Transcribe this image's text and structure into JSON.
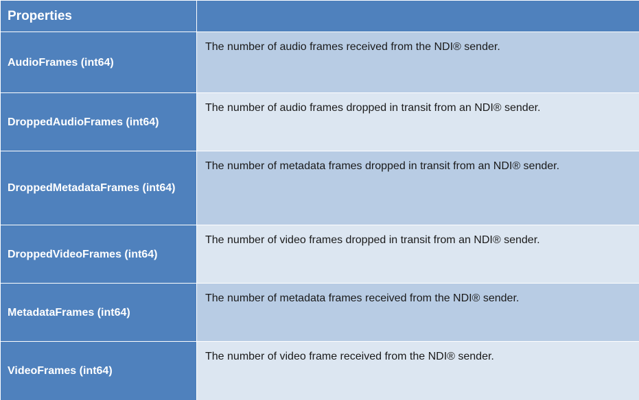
{
  "table": {
    "header": {
      "properties_label": "Properties",
      "description_label": ""
    },
    "rows": [
      {
        "name": "AudioFrames (int64)",
        "description": "The number of audio frames received from the NDI® sender."
      },
      {
        "name": "DroppedAudioFrames (int64)",
        "description": "The number of audio frames dropped in transit from an NDI® sender."
      },
      {
        "name": "DroppedMetadataFrames (int64)",
        "description": "The number of metadata frames dropped in transit from an NDI® sender."
      },
      {
        "name": "DroppedVideoFrames (int64)",
        "description": "The number of video frames dropped in transit from an NDI® sender."
      },
      {
        "name": "MetadataFrames (int64)",
        "description": "The number of metadata frames received from the NDI® sender."
      },
      {
        "name": "VideoFrames (int64)",
        "description": "The number of video frame received from the NDI® sender."
      }
    ]
  },
  "colors": {
    "header_blue": "#4f81bd",
    "row_band_dark": "#b8cce4",
    "row_band_light": "#dce6f1"
  }
}
